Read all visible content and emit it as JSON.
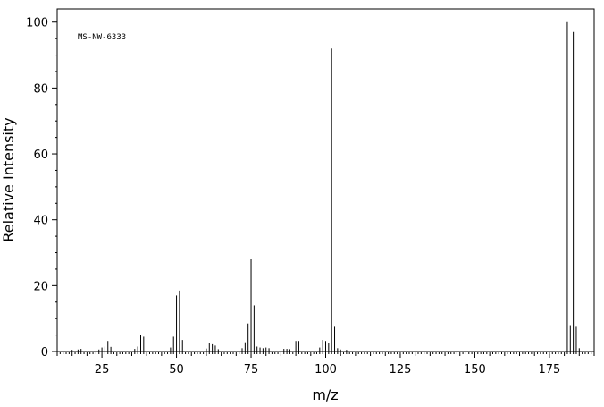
{
  "chart_data": {
    "type": "bar",
    "annotation": "MS-NW-6333",
    "xlabel": "m/z",
    "ylabel": "Relative Intensity",
    "xlim": [
      10,
      190
    ],
    "ylim": [
      0,
      104
    ],
    "x_ticks": [
      25,
      50,
      75,
      100,
      125,
      150,
      175
    ],
    "y_ticks": [
      0,
      20,
      40,
      60,
      80,
      100
    ],
    "grid": false,
    "series": [
      {
        "mz": [
          15,
          17,
          18,
          24,
          25,
          26,
          27,
          28,
          36,
          37,
          38,
          39,
          48,
          49,
          50,
          51,
          52,
          60,
          61,
          62,
          63,
          64,
          72,
          73,
          74,
          75,
          76,
          77,
          78,
          79,
          80,
          81,
          86,
          87,
          88,
          90,
          91,
          98,
          99,
          100,
          101,
          102,
          103,
          104,
          105,
          107,
          181,
          182,
          183,
          184,
          185
        ],
        "intensity": [
          0.5,
          0.6,
          0.8,
          0.6,
          1.2,
          1.5,
          3.2,
          1.4,
          0.8,
          1.5,
          5.0,
          4.5,
          1.2,
          4.5,
          17.0,
          18.5,
          3.5,
          0.9,
          2.5,
          2.2,
          1.8,
          0.7,
          1.0,
          2.8,
          8.5,
          28.0,
          14.0,
          1.5,
          1.2,
          1.0,
          1.2,
          1.0,
          0.8,
          0.8,
          0.7,
          3.2,
          3.2,
          1.2,
          3.5,
          3.2,
          2.5,
          92.0,
          7.5,
          1.0,
          0.6,
          0.5,
          100.0,
          8.0,
          97.0,
          7.5,
          1.0
        ]
      }
    ]
  }
}
